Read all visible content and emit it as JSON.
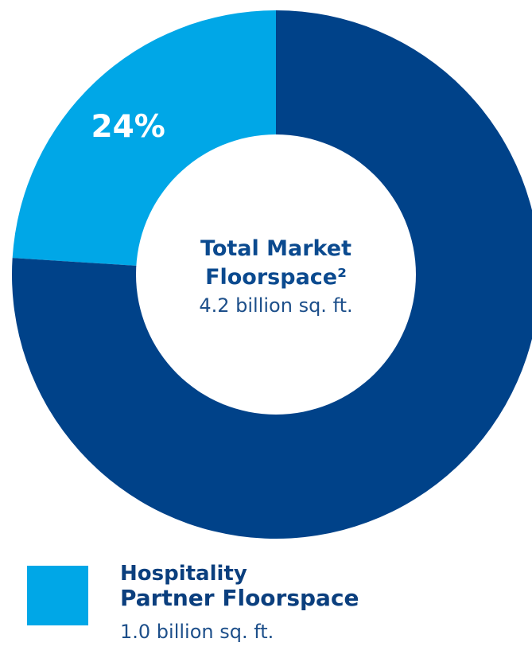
{
  "chart_data": {
    "type": "pie",
    "title": "",
    "center_label": {
      "line1": "Total Market",
      "line2": "Floorspace²",
      "value": "4.2 billion sq. ft."
    },
    "slices": [
      {
        "name": "Hospitality Partner Floorspace",
        "label": "24%",
        "value": 24,
        "color": "#00a7e7"
      },
      {
        "name": "",
        "label": "",
        "value": 76,
        "color": "#004289"
      }
    ],
    "legend": {
      "placement": "bottom-left",
      "items": [
        {
          "line1": "Hospitality",
          "line2": "Partner Floorspace",
          "value": "1.0 billion sq. ft.",
          "color": "#00a7e7"
        }
      ]
    }
  }
}
